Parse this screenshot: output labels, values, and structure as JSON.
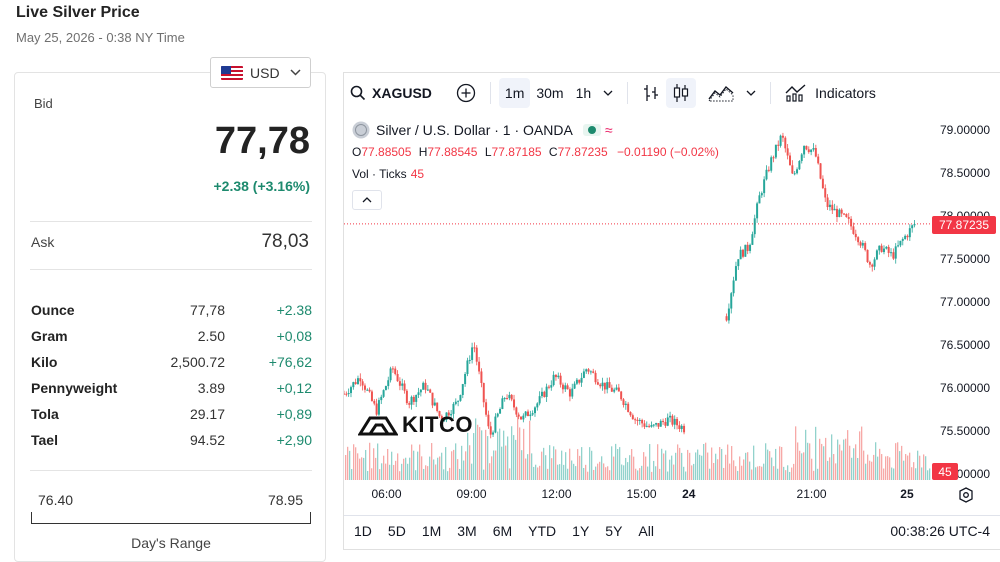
{
  "page": {
    "title": "Live Silver Price",
    "subtitle": "May 25, 2026 - 0:38 NY Time"
  },
  "currency": {
    "label": "USD"
  },
  "quote": {
    "bid_label": "Bid",
    "bid_value": "77,78",
    "bid_change": "+2.38 (+3.16%)",
    "ask_label": "Ask",
    "ask_value": "78,03"
  },
  "units": [
    {
      "name": "Ounce",
      "value": "77,78",
      "change": "+2.38"
    },
    {
      "name": "Gram",
      "value": "2.50",
      "change": "+0,08"
    },
    {
      "name": "Kilo",
      "value": "2,500.72",
      "change": "+76,62"
    },
    {
      "name": "Pennyweight",
      "value": "3.89",
      "change": "+0,12"
    },
    {
      "name": "Tola",
      "value": "29.17",
      "change": "+0,89"
    },
    {
      "name": "Tael",
      "value": "94.52",
      "change": "+2,90"
    }
  ],
  "day_range": {
    "low": "76.40",
    "high": "78.95",
    "label": "Day's Range"
  },
  "toolbar": {
    "symbol": "XAGUSD",
    "intervals": [
      "1m",
      "30m",
      "1h"
    ],
    "active_interval": "1m",
    "indicators_label": "Indicators"
  },
  "legend": {
    "title": "Silver / U.S. Dollar · 1 · OANDA",
    "open_label": "O",
    "open_value": "77.88505",
    "high_label": "H",
    "high_value": "77.88545",
    "low_label": "L",
    "low_value": "77.87185",
    "close_label": "C",
    "close_value": "77.87235",
    "change_value": "−0.01190 (−0.02%)",
    "volume_label": "Vol · Ticks",
    "volume_value": "45"
  },
  "bottom_bar": {
    "ranges": [
      "1D",
      "5D",
      "1M",
      "3M",
      "6M",
      "YTD",
      "1Y",
      "5Y",
      "All"
    ],
    "clock": "00:38:26 UTC-4"
  },
  "watermark": "KITCO",
  "colors": {
    "up": "#26a69a",
    "down": "#ef5350",
    "positive_text": "#1d8a6e",
    "price_tag": "#f23645"
  },
  "chart_data": {
    "type": "candlestick",
    "y_ticks": [
      "79.00000",
      "78.50000",
      "78.00000",
      "77.50000",
      "77.00000",
      "76.50000",
      "76.00000",
      "75.50000",
      "75.00000"
    ],
    "ylim": [
      74.85,
      79.15
    ],
    "x_ticks": [
      "06:00",
      "09:00",
      "12:00",
      "15:00",
      "24",
      "21:00",
      "25"
    ],
    "last_price": "77.87235",
    "last_volume": "45",
    "segments": [
      {
        "from_time": "04:30",
        "to_time": "16:30",
        "path": [
          75.9,
          76.1,
          75.7,
          76.2,
          75.8,
          76.0,
          75.6,
          75.8,
          76.5,
          75.4,
          75.9,
          75.6,
          75.8,
          76.1,
          75.9,
          76.2,
          76.0,
          75.9,
          75.6,
          75.5,
          75.6,
          75.5
        ]
      },
      {
        "from_time": "18:00",
        "to_time": "00:38",
        "path": [
          76.8,
          77.5,
          77.6,
          78.2,
          78.6,
          78.9,
          78.4,
          78.8,
          78.7,
          78.1,
          78.0,
          77.9,
          77.7,
          77.4,
          77.6,
          77.5,
          77.7,
          77.87
        ]
      }
    ]
  }
}
